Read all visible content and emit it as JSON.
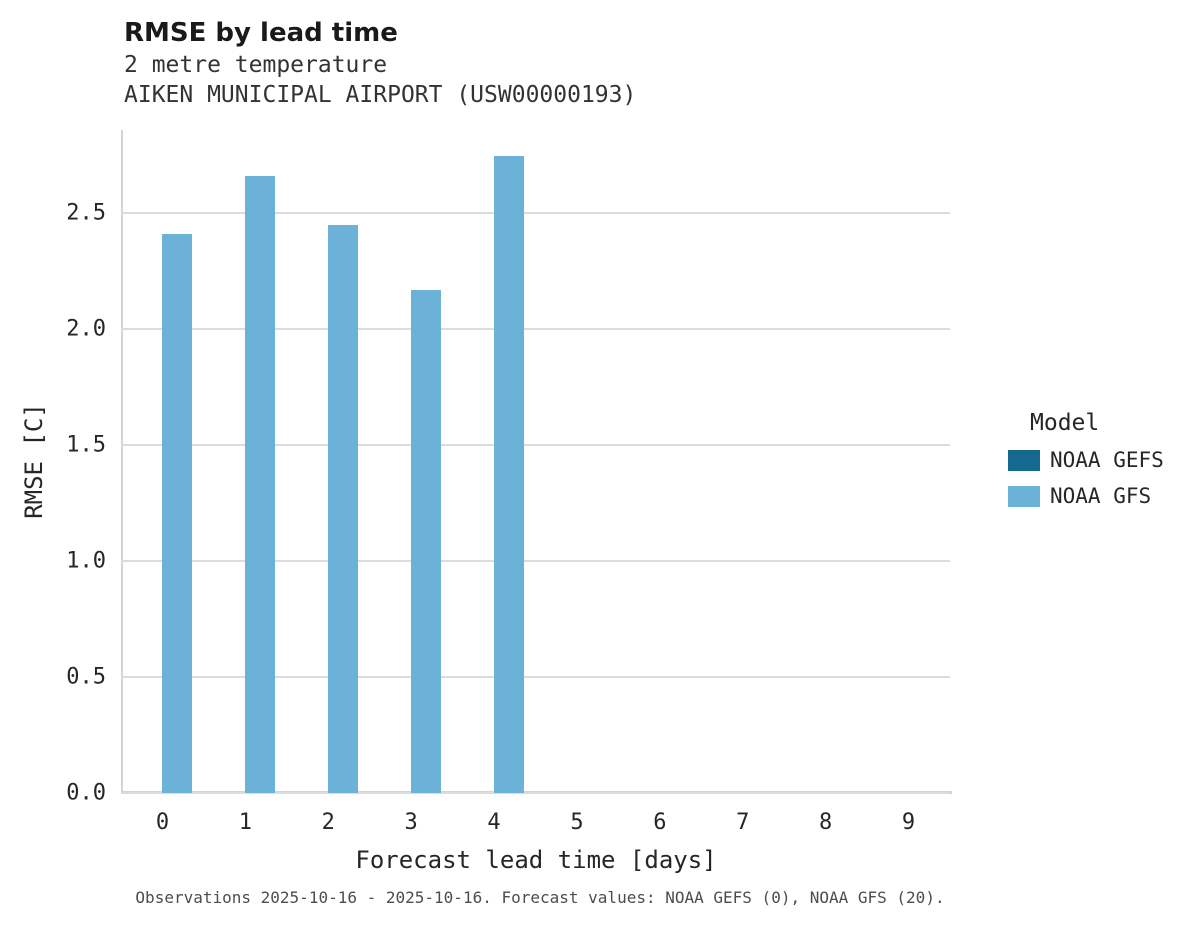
{
  "chart_data": {
    "type": "bar",
    "title": "RMSE by lead time",
    "subtitle_lines": [
      "2 metre temperature",
      "AIKEN MUNICIPAL AIRPORT (USW00000193)"
    ],
    "xlabel": "Forecast lead time [days]",
    "ylabel": "RMSE [C]",
    "categories": [
      "0",
      "1",
      "2",
      "3",
      "4",
      "5",
      "6",
      "7",
      "8",
      "9"
    ],
    "series": [
      {
        "name": "NOAA GEFS",
        "color": "#15688f",
        "values": [
          null,
          null,
          null,
          null,
          null,
          null,
          null,
          null,
          null,
          null
        ]
      },
      {
        "name": "NOAA GFS",
        "color": "#6cb2d8",
        "values": [
          2.41,
          2.66,
          2.45,
          2.17,
          2.75,
          null,
          null,
          null,
          null,
          null
        ]
      }
    ],
    "ylim": [
      0,
      2.86
    ],
    "yticks": [
      0.0,
      0.5,
      1.0,
      1.5,
      2.0,
      2.5
    ],
    "grid": true,
    "legend": {
      "title": "Model",
      "position": "right"
    }
  },
  "caption": "Observations 2025-10-16 - 2025-10-16. Forecast values: NOAA GEFS (0), NOAA GFS (20)."
}
